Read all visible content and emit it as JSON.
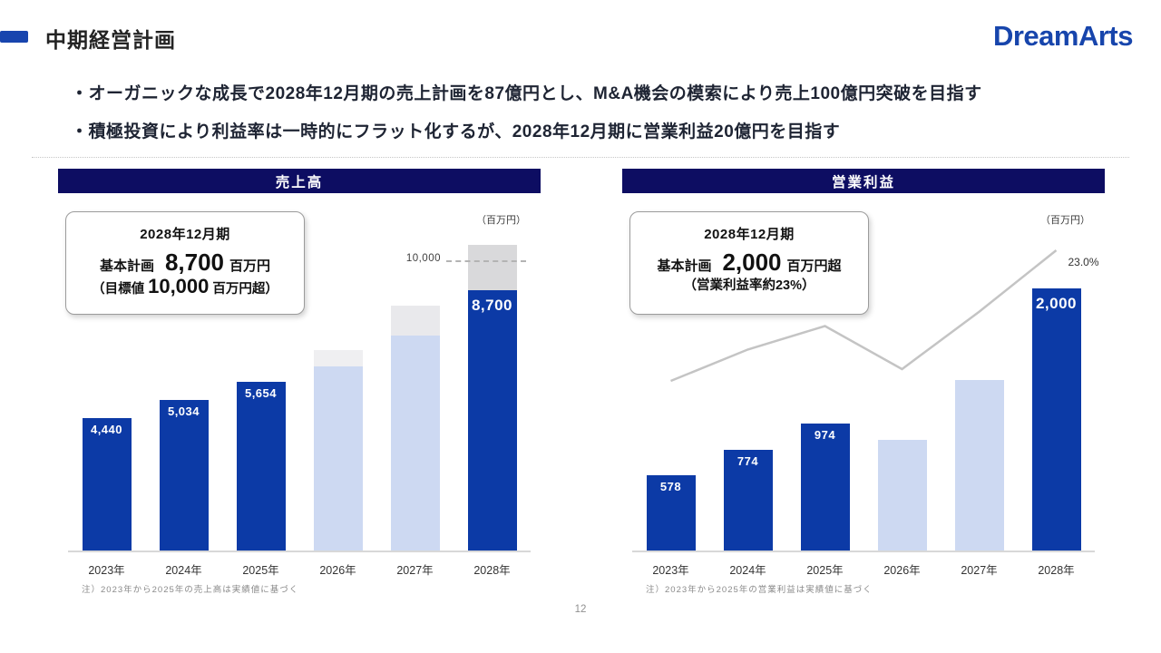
{
  "slide": {
    "page_number": "12"
  },
  "header": {
    "title": "中期経営計画",
    "logo": "DreamArts"
  },
  "bullets": [
    "・オーガニックな成長で2028年12月期の売上計画を87億円とし、M&A機会の模索により売上100億円突破を目指す",
    "・積極投資により利益率は一時的にフラット化するが、2028年12月期に営業利益20億円を目指す"
  ],
  "colors": {
    "accent_blue": "#1845AE",
    "logo_blue": "#1745AC",
    "header_bar_navy": "#0D0D62",
    "bar_navy": "#0C3AA6",
    "bar_light_blue": "#CDD9F2",
    "margin_line_gray": "#C4C4C4"
  },
  "chart_data": [
    {
      "type": "bar",
      "title": "売上高",
      "unit_label": "（百万円）",
      "categories": [
        "2023年",
        "2024年",
        "2025年",
        "2026年",
        "2027年",
        "2028年"
      ],
      "series": [
        {
          "name": "売上高",
          "values": [
            4440,
            5034,
            5654,
            6150,
            7200,
            8700
          ]
        }
      ],
      "bar_kinds": [
        "actual",
        "actual",
        "actual",
        "plan",
        "plan",
        "plan_emphasis"
      ],
      "cap_values": [
        null,
        null,
        null,
        6700,
        8200,
        10200
      ],
      "cap_colors": {
        "3": "#EFEFF1",
        "4": "#E9E9EC",
        "5": "#D9D9DB"
      },
      "data_labels": [
        "4,440",
        "5,034",
        "5,654",
        "",
        "",
        "8,700"
      ],
      "estimated_indices": [
        3,
        4
      ],
      "ylim": [
        0,
        12700
      ],
      "grid": false,
      "ref_line": {
        "value": 10000,
        "label": "10,000"
      },
      "callout": {
        "title": "2028年12月期",
        "line1_label": "基本計画",
        "line1_value": "8,700",
        "line1_suffix": "百万円",
        "line2_prefix": "（目標値",
        "line2_value": "10,000",
        "line2_suffix": "百万円超）",
        "line2_big": true
      },
      "note": "注）2023年から2025年の売上高は実績値に基づく"
    },
    {
      "type": "bar",
      "title": "営業利益",
      "unit_label": "（百万円）",
      "categories": [
        "2023年",
        "2024年",
        "2025年",
        "2026年",
        "2027年",
        "2028年"
      ],
      "series": [
        {
          "name": "営業利益",
          "values": [
            578,
            774,
            974,
            850,
            1300,
            2000
          ]
        },
        {
          "name": "営業利益率",
          "type": "line",
          "values_pct": [
            13.0,
            15.4,
            17.2,
            13.9,
            18.3,
            23.0
          ]
        }
      ],
      "bar_kinds": [
        "actual",
        "actual",
        "actual",
        "plan",
        "plan",
        "plan_emphasis"
      ],
      "cap_values": [
        null,
        null,
        null,
        null,
        null,
        null
      ],
      "cap_colors": {},
      "data_labels": [
        "578",
        "774",
        "974",
        "",
        "",
        "2,000"
      ],
      "estimated_indices": [
        3,
        4
      ],
      "ylim": [
        0,
        2900
      ],
      "grid": false,
      "line_end_label": "23.0%",
      "callout": {
        "title": "2028年12月期",
        "line1_label": "基本計画",
        "line1_value": "2,000",
        "line1_suffix": "百万円超",
        "line2_prefix": "（営業利益率",
        "line2_value": "約23%",
        "line2_suffix": "）",
        "line2_big": false
      },
      "note": "注）2023年から2025年の営業利益は実績値に基づく"
    }
  ]
}
